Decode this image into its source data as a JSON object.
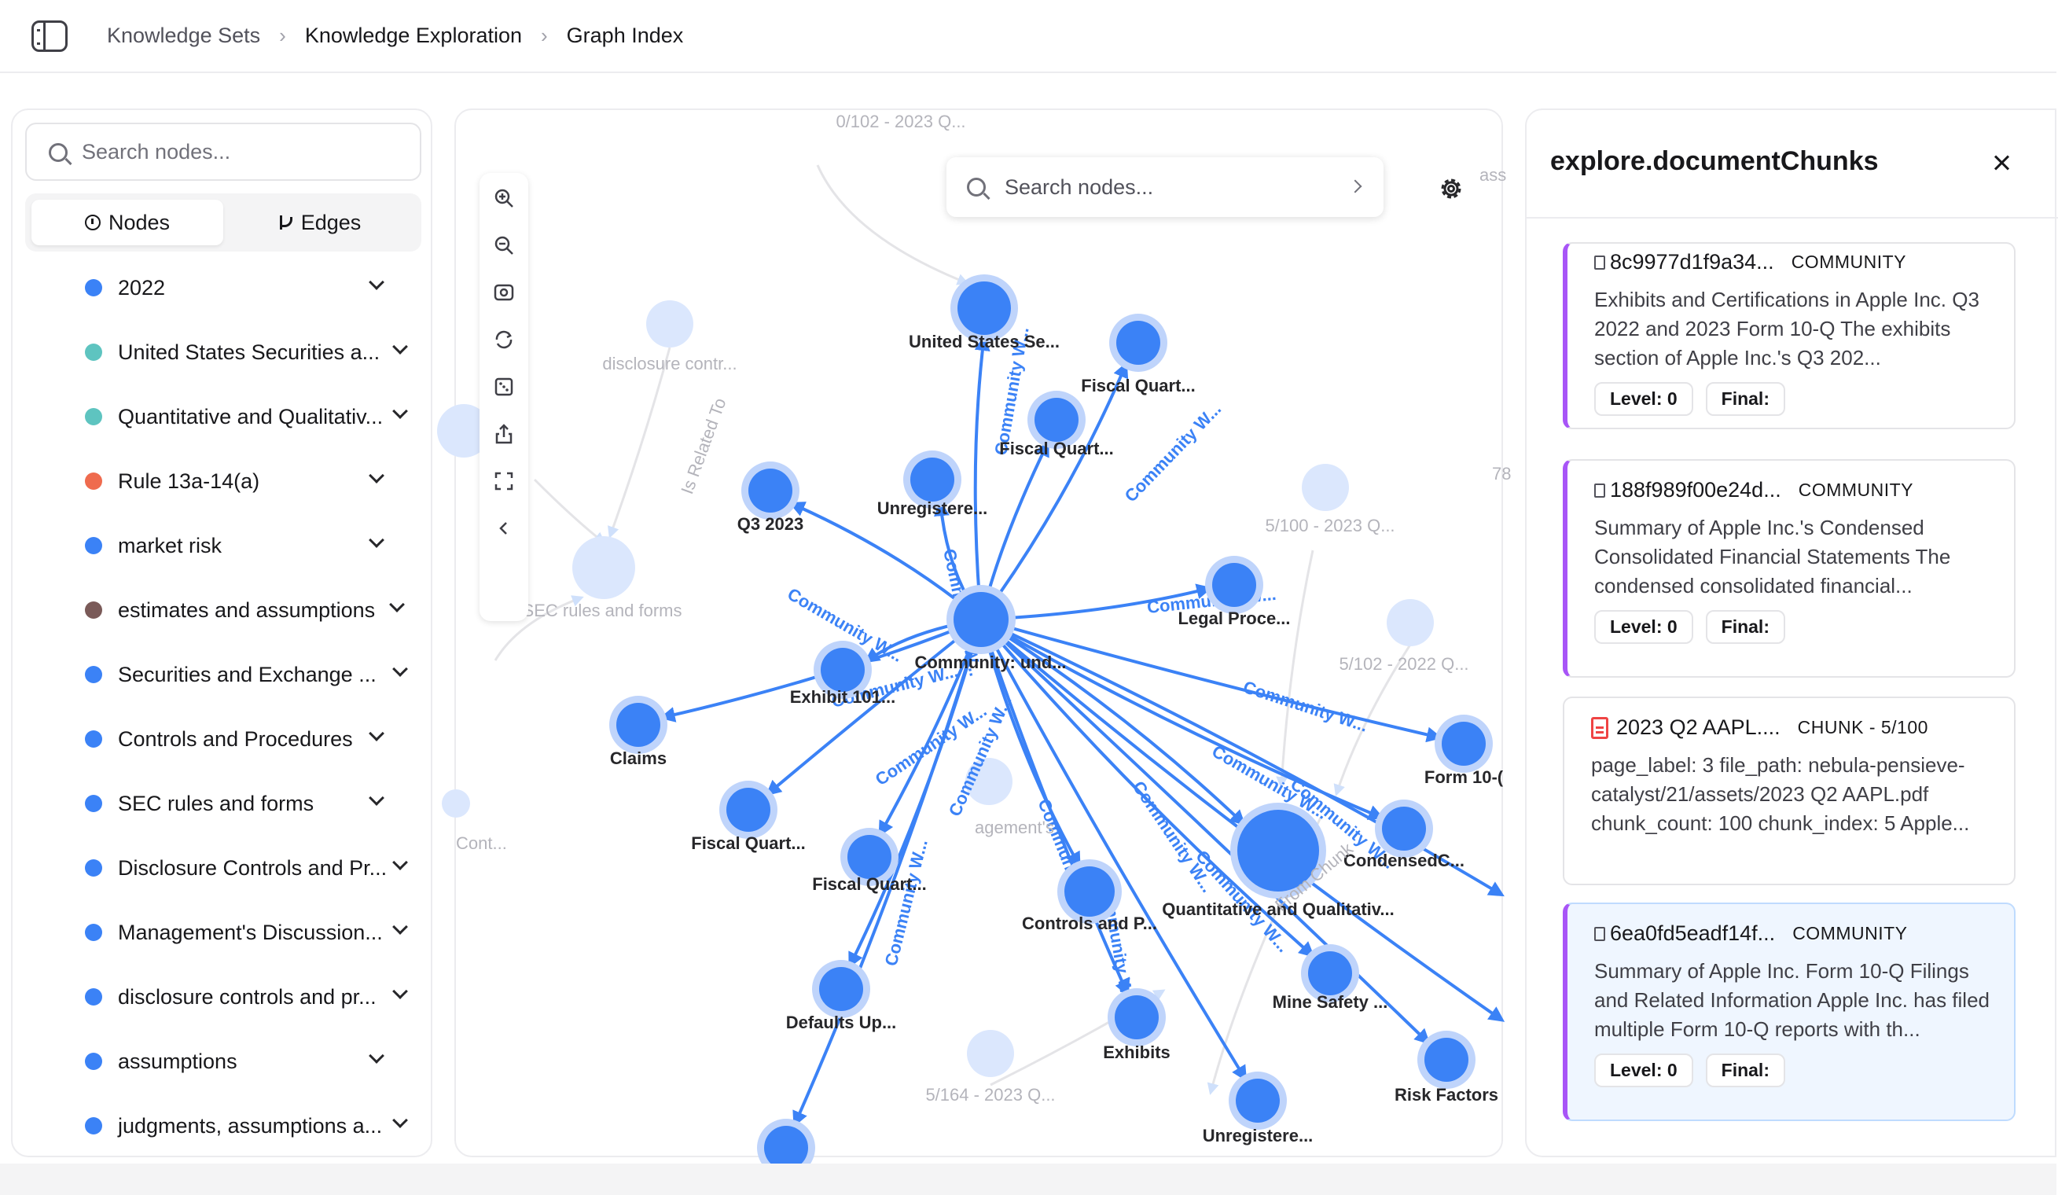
{
  "breadcrumb": {
    "items": [
      "Knowledge Sets",
      "Knowledge Exploration",
      "Graph Index"
    ]
  },
  "left_panel": {
    "search_placeholder": "Search nodes...",
    "tabs": [
      {
        "label": "Nodes",
        "icon": "info-circle-icon",
        "active": true
      },
      {
        "label": "Edges",
        "icon": "git-branch-icon",
        "active": false
      }
    ],
    "nodes": [
      {
        "label": "2022",
        "color": "#3b82f6"
      },
      {
        "label": "United States Securities a...",
        "color": "#5ec4c0"
      },
      {
        "label": "Quantitative and Qualitativ...",
        "color": "#5ec4c0"
      },
      {
        "label": "Rule 13a-14(a)",
        "color": "#ef6b4e"
      },
      {
        "label": "market risk",
        "color": "#3b82f6"
      },
      {
        "label": "estimates and assumptions",
        "color": "#7a5a58"
      },
      {
        "label": "Securities and Exchange ...",
        "color": "#3b82f6"
      },
      {
        "label": "Controls and Procedures",
        "color": "#3b82f6"
      },
      {
        "label": "SEC rules and forms",
        "color": "#3b82f6"
      },
      {
        "label": "Disclosure Controls and Pr...",
        "color": "#3b82f6"
      },
      {
        "label": "Management's Discussion...",
        "color": "#3b82f6"
      },
      {
        "label": "disclosure controls and pr...",
        "color": "#3b82f6"
      },
      {
        "label": "assumptions",
        "color": "#3b82f6"
      },
      {
        "label": "judgments, assumptions a...",
        "color": "#3b82f6"
      }
    ]
  },
  "graph": {
    "search_placeholder": "Search nodes...",
    "toolbar": [
      "zoom-in-icon",
      "zoom-out-icon",
      "fit-view-icon",
      "rotate-icon",
      "random-layout-icon",
      "export-icon",
      "fullscreen-icon",
      "collapse-icon"
    ],
    "edge_label": "Community W...",
    "center_label": "Community: und...",
    "nodes": [
      {
        "label": "United States Se..."
      },
      {
        "label": "Fiscal Quart..."
      },
      {
        "label": "Fiscal Quart..."
      },
      {
        "label": "Q3 2023"
      },
      {
        "label": "Unregistere..."
      },
      {
        "label": "Legal Proce..."
      },
      {
        "label": "Exhibit 101..."
      },
      {
        "label": "Claims"
      },
      {
        "label": "Fiscal Quart..."
      },
      {
        "label": "Fiscal Quart..."
      },
      {
        "label": "Controls and P..."
      },
      {
        "label": "Defaults Up..."
      },
      {
        "label": "Exhibits"
      },
      {
        "label": "Form 10-("
      },
      {
        "label": "CondensedC..."
      },
      {
        "label": "Quantitative and Qualitativ..."
      },
      {
        "label": "Mine Safety ..."
      },
      {
        "label": "Risk Factors"
      },
      {
        "label": "Unregistere..."
      }
    ],
    "faded_labels": [
      "0/102 - 2023 Q...",
      "disclosure contr...",
      "SEC rules and forms",
      "5/100 - 2023 Q...",
      "5/102 - 2022 Q...",
      "5/164 - 2023 Q...",
      "Cont...",
      "agement's",
      "78",
      "ass",
      "Is Related To",
      "From Chunk"
    ]
  },
  "right_panel": {
    "title": "explore.documentChunks",
    "cards": [
      {
        "id": "8c9977d1f9a34...",
        "type": "COMMUNITY",
        "text": "Exhibits and Certifications in Apple Inc. Q3 2022 and 2023 Form 10-Q The exhibits section of Apple Inc.'s Q3 202...",
        "level": "Level: 0",
        "final": "Final:"
      },
      {
        "id": "188f989f00e24d...",
        "type": "COMMUNITY",
        "text": "Summary of Apple Inc.'s Condensed Consolidated Financial Statements The condensed consolidated financial...",
        "level": "Level: 0",
        "final": "Final:"
      },
      {
        "id": "2023 Q2 AAPL....",
        "type": "CHUNK - 5/100",
        "text": "page_label: 3 file_path: nebula-pensieve-catalyst/21/assets/2023 Q2 AAPL.pdf chunk_count: 100 chunk_index: 5 Apple...",
        "level": "",
        "final": ""
      },
      {
        "id": "6ea0fd5eadf14f...",
        "type": "COMMUNITY",
        "text": "Summary of Apple Inc. Form 10-Q Filings and Related Information Apple Inc. has filed multiple Form 10-Q reports with th...",
        "level": "Level: 0",
        "final": "Final:"
      }
    ]
  }
}
